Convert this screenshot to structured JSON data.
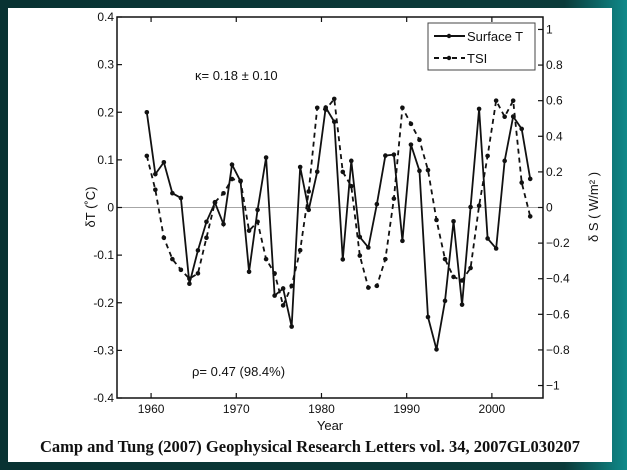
{
  "chart_data": {
    "type": "line",
    "title": "",
    "xlabel": "Year",
    "ylabel": "δT (˚C)",
    "ylabel_right": "δ S ( W/m² )",
    "xlim": [
      1956,
      2006
    ],
    "ylim": [
      -0.4,
      0.4
    ],
    "ylim_right": [
      -1.07,
      1.07
    ],
    "x_ticks": [
      "1960",
      "1970",
      "1980",
      "1990",
      "2000"
    ],
    "y_ticks": [
      "0.4",
      "0.3",
      "0.2",
      "0.1",
      "0",
      "-0.1",
      "-0.2",
      "-0.3",
      "-0.4"
    ],
    "y_ticks_right": [
      "1",
      "0.8",
      "0.6",
      "0.4",
      "0.2",
      "0",
      "-0.2",
      "-0.4",
      "-0.6",
      "-0.8",
      "-1"
    ],
    "legend_position": "top-right",
    "annotations": [
      "κ= 0.18 ± 0.10",
      "ρ= 0.47 (98.4%)"
    ],
    "x": [
      1959.5,
      1960.5,
      1961.5,
      1962.5,
      1963.5,
      1964.5,
      1965.5,
      1966.5,
      1967.5,
      1968.5,
      1969.5,
      1970.5,
      1971.5,
      1972.5,
      1973.5,
      1974.5,
      1975.5,
      1976.5,
      1977.5,
      1978.5,
      1979.5,
      1980.5,
      1981.5,
      1982.5,
      1983.5,
      1984.5,
      1985.5,
      1986.5,
      1987.5,
      1988.5,
      1989.5,
      1990.5,
      1991.5,
      1992.5,
      1993.5,
      1994.5,
      1995.5,
      1996.5,
      1997.5,
      1998.5,
      1999.5,
      2000.5,
      2001.5,
      2002.5,
      2003.5,
      2004.5
    ],
    "series": [
      {
        "name": "Surface T",
        "axis": "left",
        "style": "solid",
        "values": [
          0.2,
          0.07,
          0.095,
          0.03,
          0.02,
          -0.16,
          -0.09,
          -0.03,
          0.01,
          -0.035,
          0.09,
          0.055,
          -0.135,
          -0.005,
          0.105,
          -0.185,
          -0.17,
          -0.25,
          0.085,
          -0.005,
          0.075,
          0.21,
          0.18,
          -0.109,
          0.098,
          -0.062,
          -0.084,
          0.007,
          0.109,
          0.111,
          -0.07,
          0.132,
          0.077,
          -0.23,
          -0.298,
          -0.196,
          -0.029,
          -0.204,
          0.001,
          0.207,
          -0.065,
          -0.086,
          0.098,
          0.191,
          0.165,
          0.06
        ]
      },
      {
        "name": "TSI",
        "axis": "right",
        "style": "dashed",
        "values": [
          0.29,
          0.1,
          -0.17,
          -0.29,
          -0.35,
          -0.4,
          -0.37,
          -0.17,
          0.03,
          0.08,
          0.16,
          0.15,
          -0.13,
          -0.08,
          -0.29,
          -0.37,
          -0.55,
          -0.44,
          -0.24,
          0.09,
          0.56,
          0.55,
          0.61,
          0.2,
          0.12,
          -0.27,
          -0.45,
          -0.44,
          -0.29,
          0.05,
          0.56,
          0.47,
          0.38,
          0.21,
          -0.07,
          -0.29,
          -0.39,
          -0.41,
          -0.34,
          0.01,
          0.29,
          0.6,
          0.51,
          0.6,
          0.14,
          -0.05
        ]
      }
    ]
  },
  "caption": "Camp and Tung (2007) Geophysical Research Letters vol. 34, 2007GL030207"
}
